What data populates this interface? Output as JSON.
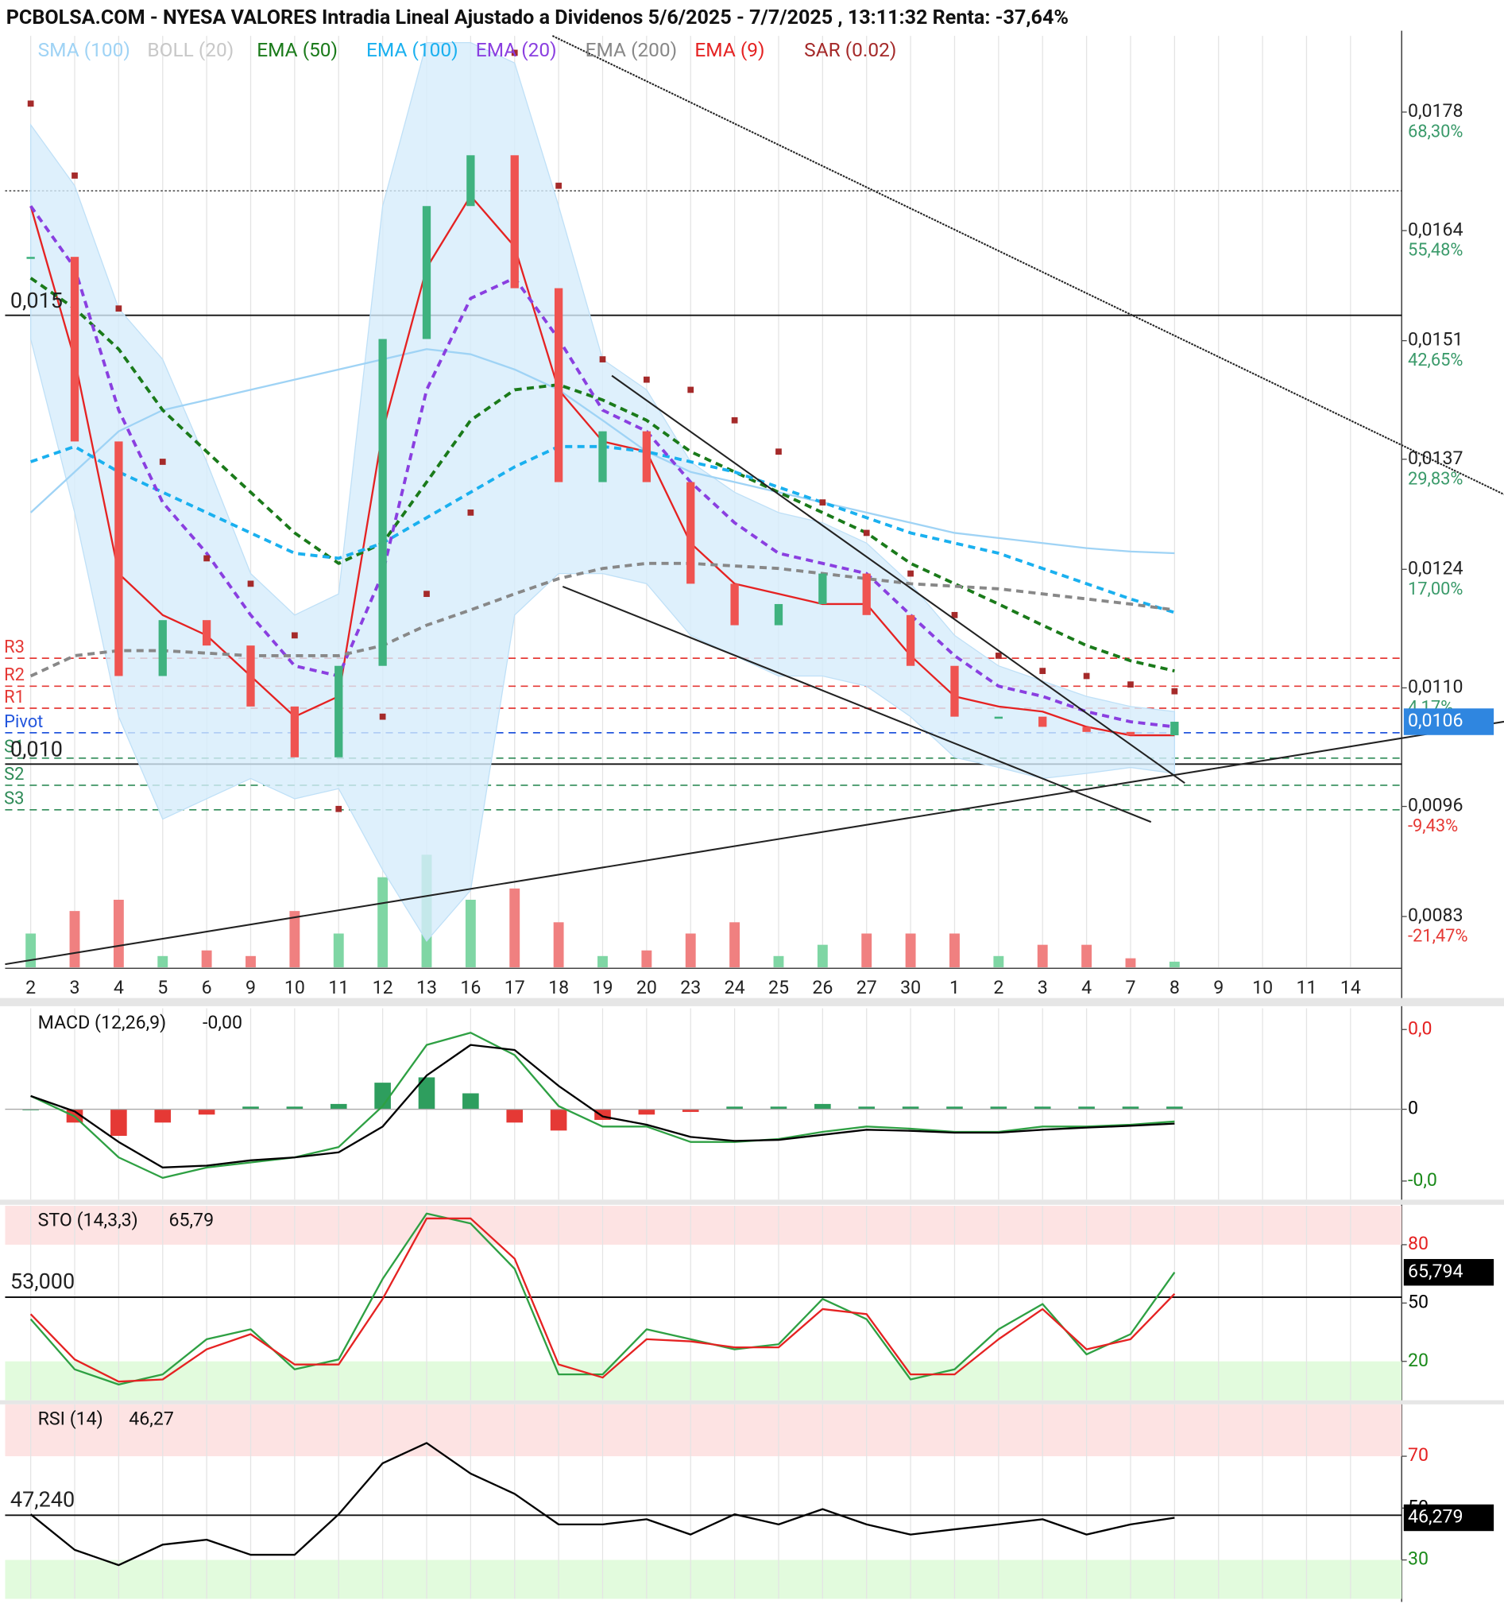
{
  "chart_data": [
    {
      "type": "line",
      "title": "PCBOLSA.COM - NYESA VALORES Intradia Lineal Ajustado a Dividenos 5/6/2025 - 7/7/2025 , 13:11:32 Renta: -37,64%",
      "categories": [
        "2",
        "3",
        "4",
        "5",
        "6",
        "9",
        "10",
        "11",
        "12",
        "13",
        "16",
        "17",
        "18",
        "19",
        "20",
        "23",
        "24",
        "25",
        "26",
        "27",
        "30",
        "1",
        "2",
        "3",
        "4",
        "7",
        "8",
        "9",
        "10",
        "11",
        "14"
      ],
      "ylim": [
        0.0077,
        0.0187
      ],
      "yticks": [
        {
          "value": 0.0178,
          "label": "0,0178"
        },
        {
          "value": 0.0164,
          "label": "0,0164"
        },
        {
          "value": 0.0151,
          "label": "0,0151"
        },
        {
          "value": 0.0137,
          "label": "0,0137"
        },
        {
          "value": 0.0124,
          "label": "0,0124"
        },
        {
          "value": 0.011,
          "label": "0,0110"
        },
        {
          "value": 0.0096,
          "label": "0,0096"
        },
        {
          "value": 0.0083,
          "label": "0,0083"
        }
      ],
      "ytick_changes": [
        "68,30%",
        "55,48%",
        "42,65%",
        "29,83%",
        "17,00%",
        "4,17%",
        "-9,43%",
        "-21,47%"
      ],
      "grid": true,
      "series": [
        {
          "name": "SMA (100)",
          "color": "#9fd3f5",
          "kind": "line",
          "values": [
            0.01307,
            0.01355,
            0.01403,
            0.01428,
            0.0144,
            0.01452,
            0.01464,
            0.01476,
            0.01488,
            0.015,
            0.01494,
            0.01476,
            0.01452,
            0.01416,
            0.01379,
            0.01355,
            0.01343,
            0.01331,
            0.01319,
            0.01307,
            0.01295,
            0.01283,
            0.01277,
            0.01271,
            0.01265,
            0.01261,
            0.01259,
            null,
            null,
            null,
            null
          ]
        },
        {
          "name": "BOLL (20)",
          "color": "#cfcfcf",
          "kind": "band",
          "upper": [
            0.01765,
            0.01693,
            0.01548,
            0.01488,
            0.01367,
            0.01235,
            0.01186,
            0.01211,
            0.01669,
            0.01862,
            0.01862,
            0.01838,
            0.01669,
            0.01488,
            0.01452,
            0.01367,
            0.01331,
            0.01307,
            0.01295,
            0.01271,
            0.01223,
            0.01162,
            0.01126,
            0.01108,
            0.0109,
            0.01078,
            0.01072,
            null,
            null,
            null,
            null
          ],
          "lower": [
            0.01512,
            0.01307,
            0.01066,
            0.00945,
            0.00969,
            0.00993,
            0.00969,
            0.00981,
            0.00885,
            0.00801,
            0.00861,
            0.01186,
            0.01235,
            0.01235,
            0.01223,
            0.01162,
            0.01138,
            0.01114,
            0.01114,
            0.01102,
            0.01066,
            0.01018,
            0.01006,
            0.00993,
            0.00999,
            0.01006,
            0.00999,
            null,
            null,
            null,
            null
          ]
        },
        {
          "name": "EMA (50)",
          "color": "#1a7a1a",
          "kind": "dashed",
          "values": [
            0.01584,
            0.01548,
            0.015,
            0.01428,
            0.01379,
            0.01331,
            0.01283,
            0.01247,
            0.01271,
            0.01343,
            0.01416,
            0.01452,
            0.01458,
            0.0144,
            0.01416,
            0.01379,
            0.01355,
            0.01331,
            0.01307,
            0.01283,
            0.01247,
            0.01223,
            0.01199,
            0.01174,
            0.0115,
            0.01132,
            0.0112,
            null,
            null,
            null,
            null
          ]
        },
        {
          "name": "EMA (100)",
          "color": "#1ab0ef",
          "kind": "dashed",
          "values": [
            0.01367,
            0.01385,
            0.01355,
            0.01331,
            0.01307,
            0.01283,
            0.01259,
            0.01253,
            0.01271,
            0.01301,
            0.01331,
            0.01361,
            0.01385,
            0.01385,
            0.01379,
            0.01367,
            0.01355,
            0.01337,
            0.01319,
            0.01301,
            0.01283,
            0.01271,
            0.01259,
            0.01241,
            0.01223,
            0.01205,
            0.01189,
            null,
            null,
            null,
            null
          ]
        },
        {
          "name": "EMA (20)",
          "color": "#8a3fe0",
          "kind": "dashed",
          "values": [
            0.01669,
            0.01596,
            0.01428,
            0.01319,
            0.01259,
            0.01186,
            0.01126,
            0.01114,
            0.01235,
            0.01452,
            0.0156,
            0.01584,
            0.01512,
            0.01428,
            0.01403,
            0.01343,
            0.01295,
            0.01259,
            0.01247,
            0.01235,
            0.01186,
            0.01138,
            0.01102,
            0.0109,
            0.01072,
            0.0106,
            0.01054,
            null,
            null,
            null,
            null
          ]
        },
        {
          "name": "EMA (200)",
          "color": "#888888",
          "kind": "dashed",
          "values": [
            0.01114,
            0.01138,
            0.01144,
            0.01144,
            0.01141,
            0.01138,
            0.01138,
            0.01138,
            0.0115,
            0.01174,
            0.01192,
            0.01211,
            0.01229,
            0.01241,
            0.01247,
            0.01247,
            0.01244,
            0.01241,
            0.01235,
            0.01229,
            0.01223,
            0.0122,
            0.01217,
            0.01211,
            0.01205,
            0.01199,
            0.01192,
            null,
            null,
            null,
            null
          ]
        },
        {
          "name": "EMA (9)",
          "color": "#e52222",
          "kind": "line",
          "values": [
            0.01669,
            0.01488,
            0.01235,
            0.01186,
            0.01162,
            0.01114,
            0.01066,
            0.0109,
            0.01403,
            0.01596,
            0.01681,
            0.01621,
            0.01452,
            0.01391,
            0.01379,
            0.01271,
            0.01223,
            0.01211,
            0.01199,
            0.01199,
            0.01138,
            0.0109,
            0.01078,
            0.01072,
            0.01054,
            0.01044,
            0.01044,
            null,
            null,
            null,
            null
          ]
        },
        {
          "name": "SAR (0.02)",
          "color": "#a52a2a",
          "kind": "dots",
          "values": [
            0.0179,
            0.01705,
            0.01548,
            0.01367,
            0.01253,
            0.01223,
            0.01162,
            0.00957,
            0.01066,
            0.01211,
            0.01307,
            0.0185,
            0.01693,
            0.01488,
            0.01464,
            0.01452,
            0.01416,
            0.01379,
            0.01319,
            0.01283,
            0.01235,
            0.01186,
            0.01138,
            0.0112,
            0.01114,
            0.01104,
            0.01096,
            null,
            null,
            null,
            null
          ]
        },
        {
          "kind": "candles",
          "values": [
            0.01609,
            0.01391,
            0.01114,
            0.0118,
            0.0115,
            0.01078,
            0.01018,
            0.01126,
            0.01512,
            0.01669,
            0.01729,
            0.01572,
            0.01343,
            0.01403,
            0.01343,
            0.01223,
            0.01174,
            0.01199,
            0.01235,
            0.01186,
            0.01126,
            0.01066,
            0.01066,
            0.01054,
            0.01048,
            0.01044,
            0.0106,
            null,
            null,
            null,
            null
          ]
        }
      ],
      "volume": [
        30,
        50,
        60,
        10,
        15,
        10,
        50,
        30,
        80,
        100,
        60,
        70,
        40,
        10,
        15,
        30,
        40,
        10,
        20,
        30,
        30,
        30,
        10,
        20,
        20,
        8,
        5,
        null,
        null,
        null,
        null
      ],
      "levels": [
        {
          "label": "0,015",
          "value": 0.0154
        },
        {
          "label": "0,010",
          "value": 0.0101
        }
      ],
      "dotted_levels": [
        0.01687
      ],
      "pivots": [
        {
          "label": "R3",
          "value": 0.01135,
          "color": "#e53935"
        },
        {
          "label": "R2",
          "value": 0.01102,
          "color": "#e53935"
        },
        {
          "label": "R1",
          "value": 0.01076,
          "color": "#e53935"
        },
        {
          "label": "Pivot",
          "value": 0.01047,
          "color": "#2255dd"
        },
        {
          "label": "S1",
          "value": 0.01017,
          "color": "#2e8b57"
        },
        {
          "label": "S2",
          "value": 0.00985,
          "color": "#2e8b57"
        },
        {
          "label": "S3",
          "value": 0.00956,
          "color": "#2e8b57"
        }
      ],
      "last": {
        "value": 0.0106,
        "label": "0,0106",
        "color": "#2f86e0"
      }
    },
    {
      "type": "line",
      "title": "MACD (12,26,9)",
      "value_text": "-0,00",
      "ylim": [
        -0.00034,
        0.00038
      ],
      "yticks": [
        {
          "value": 0.0003,
          "label": "0,0"
        },
        0,
        {
          "value": -0.00027,
          "label": "-0,0"
        }
      ],
      "tick_colors": [
        "#e52222",
        "#000000",
        "#1a8a1a"
      ],
      "series": [
        {
          "kind": "bars",
          "color": "#2e9e5e",
          "values": [
            0,
            -5e-05,
            -0.0001,
            -5e-05,
            -2e-05,
            1e-05,
            1e-05,
            2e-05,
            0.0001,
            0.00012,
            6e-05,
            -5e-05,
            -8e-05,
            -4e-05,
            -2e-05,
            -1e-05,
            1e-05,
            1e-05,
            2e-05,
            1e-05,
            1e-05,
            1e-05,
            1e-05,
            1e-05,
            1e-05,
            1e-05,
            1e-05,
            null,
            null,
            null,
            null
          ]
        },
        {
          "kind": "line",
          "color": "#2ea043",
          "values": [
            5e-05,
            -2.7e-05,
            -0.000181,
            -0.000258,
            -0.000219,
            -0.0002,
            -0.000181,
            -0.000142,
            1.2e-05,
            0.000242,
            0.000288,
            0.000204,
            1.2e-05,
            -6.5e-05,
            -6.5e-05,
            -0.000123,
            -0.000123,
            -0.000112,
            -8.5e-05,
            -6.5e-05,
            -7.3e-05,
            -8.5e-05,
            -8.5e-05,
            -6.5e-05,
            -6.5e-05,
            -5.8e-05,
            -4.6e-05,
            null,
            null,
            null,
            null
          ]
        },
        {
          "kind": "line",
          "color": "#000000",
          "values": [
            5e-05,
            -8e-06,
            -0.000123,
            -0.000219,
            -0.000212,
            -0.000192,
            -0.000181,
            -0.000162,
            -6.5e-05,
            0.000127,
            0.000242,
            0.000223,
            8.8e-05,
            -2.7e-05,
            -5.8e-05,
            -0.000104,
            -0.000119,
            -0.000115,
            -9.6e-05,
            -7.7e-05,
            -8.1e-05,
            -8.8e-05,
            -8.8e-05,
            -7.7e-05,
            -6.9e-05,
            -6.2e-05,
            -5.4e-05,
            null,
            null,
            null,
            null
          ]
        }
      ]
    },
    {
      "type": "line",
      "title": "STO (14,3,3)",
      "value_text": "65,79",
      "ylim": [
        0,
        100
      ],
      "yticks": [
        80,
        50,
        20
      ],
      "tick_colors": [
        "#e52222",
        "#000000",
        "#1a8a1a"
      ],
      "zones": [
        {
          "from": 80,
          "to": 100,
          "color": "#fde3e3"
        },
        {
          "from": 0,
          "to": 20,
          "color": "#e2fbdd"
        }
      ],
      "level": {
        "value": 53,
        "label": "53,000"
      },
      "last": {
        "value": 65.794,
        "label": "65,794",
        "color": "#000000"
      },
      "series": [
        {
          "kind": "line",
          "color": "#2ea043",
          "values": [
            41.7,
            15.9,
            8.1,
            13.3,
            31.4,
            36.5,
            15.9,
            21,
            62.4,
            96,
            90.9,
            67.6,
            13.3,
            13.3,
            36.5,
            31.4,
            26.2,
            28.8,
            52.1,
            41.7,
            10.7,
            15.9,
            36.5,
            49.5,
            23.6,
            34,
            65.79,
            null,
            null,
            null,
            null
          ]
        },
        {
          "kind": "line",
          "color": "#e52222",
          "values": [
            44.3,
            21,
            9.6,
            10.7,
            26.2,
            34,
            18.4,
            18.4,
            52.1,
            93.5,
            93.5,
            72.8,
            18.4,
            11.7,
            31.4,
            30.3,
            27.2,
            27.2,
            46.9,
            44.3,
            13.3,
            13.3,
            31.4,
            46.9,
            26.2,
            31.4,
            54.7,
            null,
            null,
            null,
            null
          ]
        }
      ]
    },
    {
      "type": "line",
      "title": "RSI (14)",
      "value_text": "46,27",
      "ylim": [
        15,
        90
      ],
      "yticks": [
        70,
        50,
        30
      ],
      "tick_colors": [
        "#e52222",
        "#000000",
        "#1a8a1a"
      ],
      "zones": [
        {
          "from": 70,
          "to": 90,
          "color": "#fde3e3"
        },
        {
          "from": 15,
          "to": 30,
          "color": "#e2fbdd"
        }
      ],
      "level": {
        "value": 47.24,
        "label": "47,240"
      },
      "last": {
        "value": 46.279,
        "label": "46,279",
        "color": "#000000"
      },
      "series": [
        {
          "kind": "line",
          "color": "#000000",
          "values": [
            47.6,
            33.9,
            28,
            35.9,
            37.8,
            32,
            32,
            47.6,
            67.3,
            75.1,
            63.3,
            55.5,
            43.7,
            43.7,
            45.7,
            39.8,
            47.6,
            43.7,
            49.6,
            43.7,
            39.8,
            41.8,
            43.7,
            45.7,
            39.8,
            43.7,
            46.27,
            null,
            null,
            null,
            null
          ]
        }
      ]
    }
  ]
}
